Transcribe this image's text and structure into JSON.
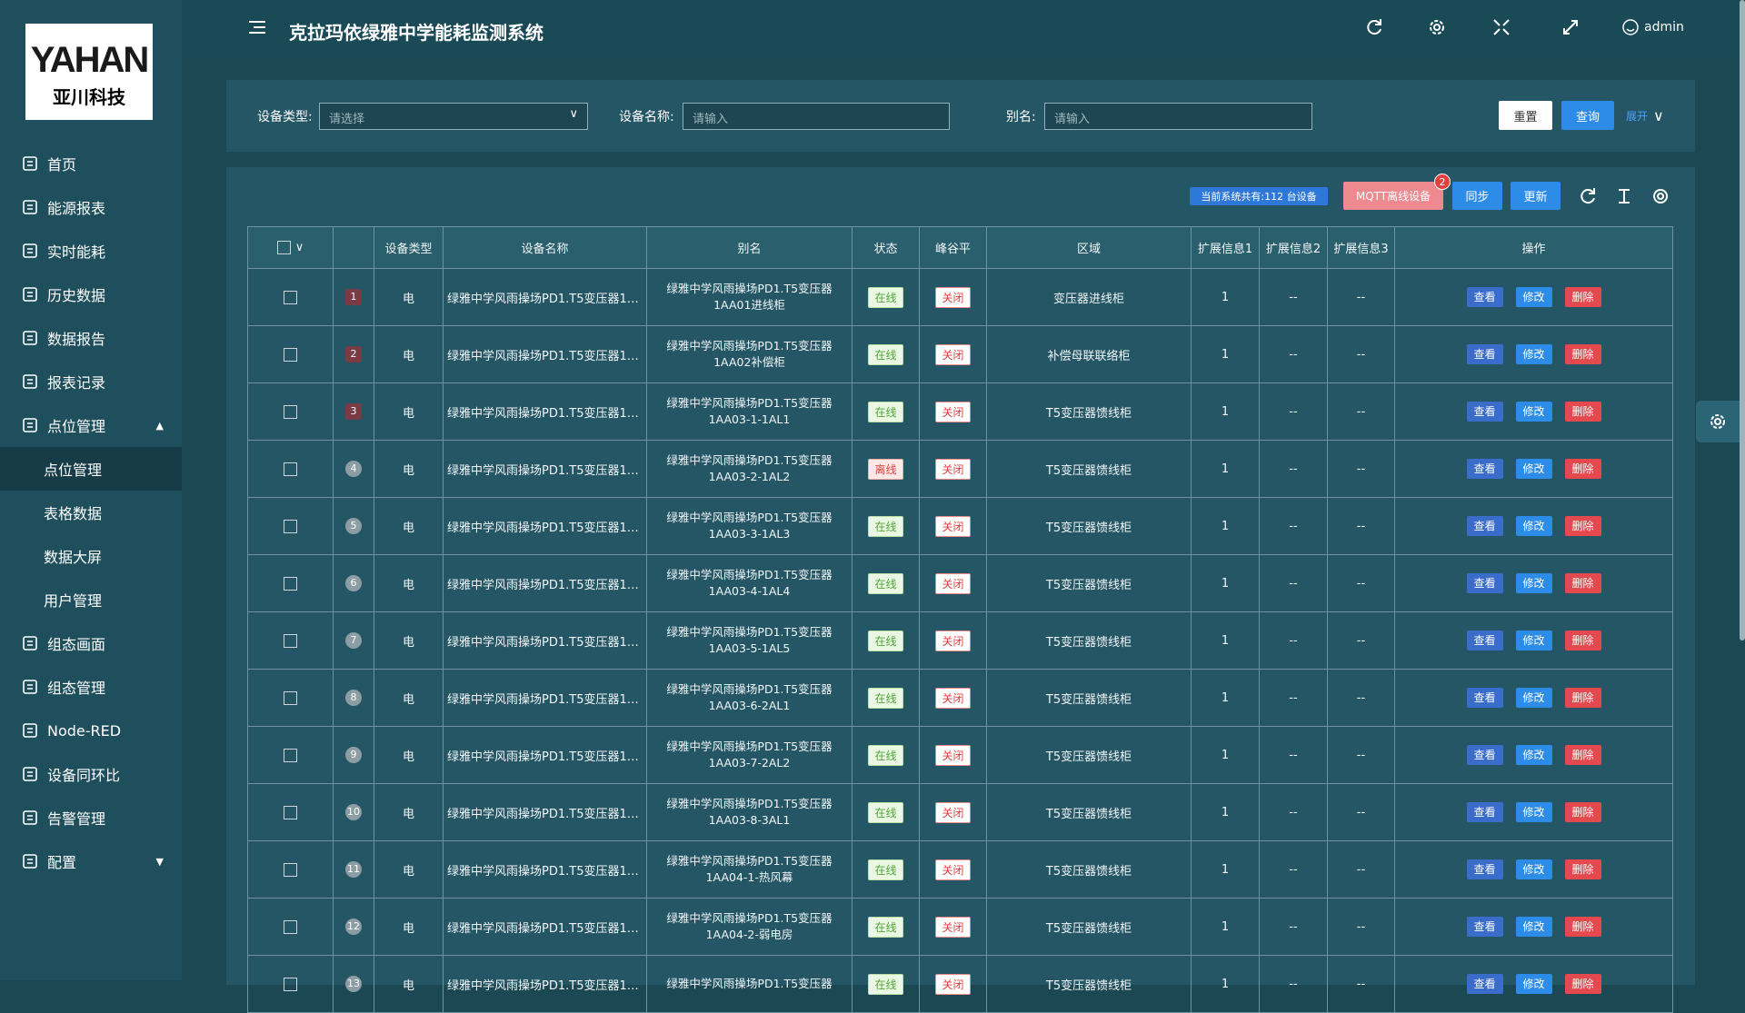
{
  "logo": {
    "brand": "YAHAN",
    "name": "亚川科技"
  },
  "header": {
    "title": "克拉玛依绿雅中学能耗监测系统",
    "user": "admin"
  },
  "sidebar": {
    "menu": [
      {
        "label": "首页"
      },
      {
        "label": "能源报表"
      },
      {
        "label": "实时能耗"
      },
      {
        "label": "历史数据"
      },
      {
        "label": "数据报告"
      },
      {
        "label": "报表记录"
      },
      {
        "label": "点位管理",
        "children": [
          "点位管理",
          "表格数据",
          "数据大屏",
          "用户管理"
        ]
      },
      {
        "label": "组态画面"
      },
      {
        "label": "组态管理"
      },
      {
        "label": "Node-RED"
      },
      {
        "label": "设备同环比"
      },
      {
        "label": "告警管理"
      },
      {
        "label": "配置"
      }
    ]
  },
  "filters": [
    {
      "label": "设备类型:",
      "placeholder": "请选择"
    },
    {
      "label": "设备名称:",
      "placeholder": "请输入"
    },
    {
      "label": "别名:",
      "placeholder": "请输入"
    }
  ],
  "filter_buttons": {
    "reset": "重置",
    "query": "查询",
    "expand": "展开"
  },
  "toolbar": {
    "count": "当前系统共有:112 台设备",
    "mqtt": "MQTT离线设备",
    "badge": "2",
    "sync": "同步",
    "update": "更新"
  },
  "table": {
    "columns": [
      "设备类型",
      "设备名称",
      "别名",
      "状态",
      "峰谷平",
      "区域",
      "扩展信息1",
      "扩展信息2",
      "扩展信息3",
      "操作"
    ],
    "actions": [
      "查看",
      "修改",
      "删除"
    ],
    "rows": [
      [
        "1",
        "电",
        "绿雅中学风雨操场PD1.T5变压器1AA...",
        "绿雅中学风雨操场PD1.T5变压器1AA01进线柜",
        "在线",
        "关闭",
        "变压器进线柜",
        "1",
        "--",
        "--"
      ],
      [
        "2",
        "电",
        "绿雅中学风雨操场PD1.T5变压器1AA...",
        "绿雅中学风雨操场PD1.T5变压器1AA02补偿柜",
        "在线",
        "关闭",
        "补偿母联联络柜",
        "1",
        "--",
        "--"
      ],
      [
        "3",
        "电",
        "绿雅中学风雨操场PD1.T5变压器1AA...",
        "绿雅中学风雨操场PD1.T5变压器 1AA03-1-1AL1",
        "在线",
        "关闭",
        "T5变压器馈线柜",
        "1",
        "--",
        "--"
      ],
      [
        "4",
        "电",
        "绿雅中学风雨操场PD1.T5变压器1AA...",
        "绿雅中学风雨操场PD1.T5变压器 1AA03-2-1AL2",
        "离线",
        "关闭",
        "T5变压器馈线柜",
        "1",
        "--",
        "--"
      ],
      [
        "5",
        "电",
        "绿雅中学风雨操场PD1.T5变压器1AA...",
        "绿雅中学风雨操场PD1.T5变压器 1AA03-3-1AL3",
        "在线",
        "关闭",
        "T5变压器馈线柜",
        "1",
        "--",
        "--"
      ],
      [
        "6",
        "电",
        "绿雅中学风雨操场PD1.T5变压器1AA...",
        "绿雅中学风雨操场PD1.T5变压器 1AA03-4-1AL4",
        "在线",
        "关闭",
        "T5变压器馈线柜",
        "1",
        "--",
        "--"
      ],
      [
        "7",
        "电",
        "绿雅中学风雨操场PD1.T5变压器1AA...",
        "绿雅中学风雨操场PD1.T5变压器 1AA03-5-1AL5",
        "在线",
        "关闭",
        "T5变压器馈线柜",
        "1",
        "--",
        "--"
      ],
      [
        "8",
        "电",
        "绿雅中学风雨操场PD1.T5变压器1AA...",
        "绿雅中学风雨操场PD1.T5变压器 1AA03-6-2AL1",
        "在线",
        "关闭",
        "T5变压器馈线柜",
        "1",
        "--",
        "--"
      ],
      [
        "9",
        "电",
        "绿雅中学风雨操场PD1.T5变压器1AA...",
        "绿雅中学风雨操场PD1.T5变压器 1AA03-7-2AL2",
        "在线",
        "关闭",
        "T5变压器馈线柜",
        "1",
        "--",
        "--"
      ],
      [
        "10",
        "电",
        "绿雅中学风雨操场PD1.T5变压器1AA...",
        "绿雅中学风雨操场PD1.T5变压器 1AA03-8-3AL1",
        "在线",
        "关闭",
        "T5变压器馈线柜",
        "1",
        "--",
        "--"
      ],
      [
        "11",
        "电",
        "绿雅中学风雨操场PD1.T5变压器1AA...",
        "绿雅中学风雨操场PD1.T5变压器 1AA04-1-热风幕",
        "在线",
        "关闭",
        "T5变压器馈线柜",
        "1",
        "--",
        "--"
      ],
      [
        "12",
        "电",
        "绿雅中学风雨操场PD1.T5变压器1AA...",
        "绿雅中学风雨操场PD1.T5变压器 1AA04-2-弱电房",
        "在线",
        "关闭",
        "T5变压器馈线柜",
        "1",
        "--",
        "--"
      ],
      [
        "13",
        "电",
        "绿雅中学风雨操场PD1.T5变压器1AA...",
        "绿雅中学风雨操场PD1.T5变压器",
        "在线",
        "关闭",
        "T5变压器馈线柜",
        "1",
        "--",
        "--"
      ]
    ]
  }
}
